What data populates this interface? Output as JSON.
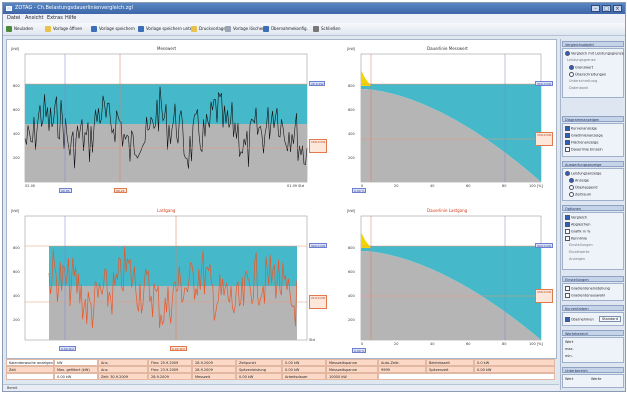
{
  "window": {
    "title": "ZOTAG - Ch.Belastungsdauerlinienvergleich.zgl"
  },
  "menu": [
    "Datei",
    "Ansicht",
    "Extras",
    "Hilfe"
  ],
  "toolbar": [
    "Neuladen",
    "Vorlage öffnen",
    "Vorlage speichern",
    "Vorlage speichern unter",
    "Druckvorlage",
    "Vorlage löschen",
    "Übernahmekonfig.",
    "Schließen"
  ],
  "colors": {
    "fill_area": "#45b9c9",
    "base_area": "#b5b5b5",
    "black_series": "#111111",
    "orange_series": "#e8582a",
    "threshold": "#e79a7a",
    "peak_highlight": "#f1d400"
  },
  "plots": {
    "p1": {
      "title": "Messwert",
      "ylabel": "[kW]",
      "xstart": "02.00",
      "xend": "01.09 Std",
      "ylabels": [
        "800",
        "600",
        "400",
        "200"
      ],
      "flag_left": "00.05",
      "flag_mid": "08.24",
      "flag_r1": "20.0 kW",
      "flag_r2": "150.0 kW",
      "flag_bottom": "0.00 Std"
    },
    "p2": {
      "title": "Dauerlinie Messwert",
      "ylabel": "[kW]",
      "xstart": "0",
      "xend": "100 [%]",
      "ylabels": [
        "800",
        "600",
        "400",
        "200"
      ],
      "xlabels": [
        "20",
        "40",
        "60",
        "80"
      ],
      "flag_r1": "900.0 kW",
      "flag_r2": "150.0 kW",
      "flag_bottom": "0.00 %"
    },
    "p3": {
      "title": "Lastgang",
      "ylabel": "[kW]",
      "xend": "Std",
      "ylabels": [
        "800",
        "600",
        "400",
        "200"
      ],
      "flag_r1": "900.0 kW",
      "flag_r2": "210.0 kW",
      "flag_bottom": "0.00 Std"
    },
    "p4": {
      "title": "Dauerlinie Lastgang",
      "ylabel": "[kW]",
      "xstart": "0",
      "xend": "100 [%]",
      "ylabels": [
        "800",
        "600",
        "400",
        "200"
      ],
      "xlabels": [
        "20",
        "40",
        "60",
        "80"
      ],
      "flag_r1": "900.0 kW",
      "flag_r2": "150.0 kW",
      "flag_bottom": "0.00 %"
    }
  },
  "right_panel": {
    "sections": [
      {
        "header": "Vergleichsobjekt",
        "items": [
          "Vergleich mit Leistungsgrenze",
          "Leistungsgrenze",
          "Grenzwert",
          "Überschreitungen",
          "Unterschreitung",
          "Datenbank"
        ]
      },
      {
        "header": "Diagrammanzeigen",
        "items": [
          "Kurvenanzeige",
          "Gradlinienanzeige",
          "Flächenanzeige",
          "Dauerlinie Einzeln"
        ]
      },
      {
        "header": "Auswertungsanzeige",
        "items": [
          "Leistungsanzeige",
          "Anzeige",
          "Überlappend",
          "Zeitraum"
        ]
      },
      {
        "header": "Optionen",
        "items": [
          "Vergleich",
          "Abgleichen",
          "Grafik in %",
          "Kennlinie",
          "Einstellungen",
          "Einzelwerte",
          "Anzeigen"
        ]
      },
      {
        "header": "Einstellungen",
        "items": [
          "Gradienteneinstellung",
          "Gradientenauswahl"
        ]
      },
      {
        "header": "Kurvenfarben",
        "items": [
          "Übernehmen",
          "Standard"
        ]
      },
      {
        "header": "Wertebereich",
        "items": [
          "Wert",
          "max.",
          "min."
        ]
      },
      {
        "header": "Unterbereich",
        "items": [
          "Wert",
          "Werte"
        ]
      }
    ]
  },
  "table": {
    "rows": [
      [
        "Kalenderwoche anzeigen",
        "kW",
        "Anz.",
        "Flex: 25.9.2009",
        "28.9.2009",
        "Zeitpunkt",
        "0.00 kW",
        "Messzeitspanne",
        "Auto-Zeitr.",
        "Betriebszeit",
        "0.0 kW"
      ],
      [
        "Zeit",
        "Max. gefiltert (kW)",
        "Anz.",
        "Flex: 23.9.2009",
        "28.9.2009",
        "Spitzenleistung",
        "0.00 kW",
        "Messzeitspanne",
        "9999",
        "Spitzenzeit",
        "0.00 kW"
      ],
      [
        "",
        "0.00 kW",
        "Zeit: 30.9.2009",
        "28.9.2009",
        "Messzeit",
        "0.00 kW",
        "Arbeitsdauer",
        "10000 kW",
        "",
        "",
        ""
      ]
    ]
  },
  "status": "Bereit"
}
